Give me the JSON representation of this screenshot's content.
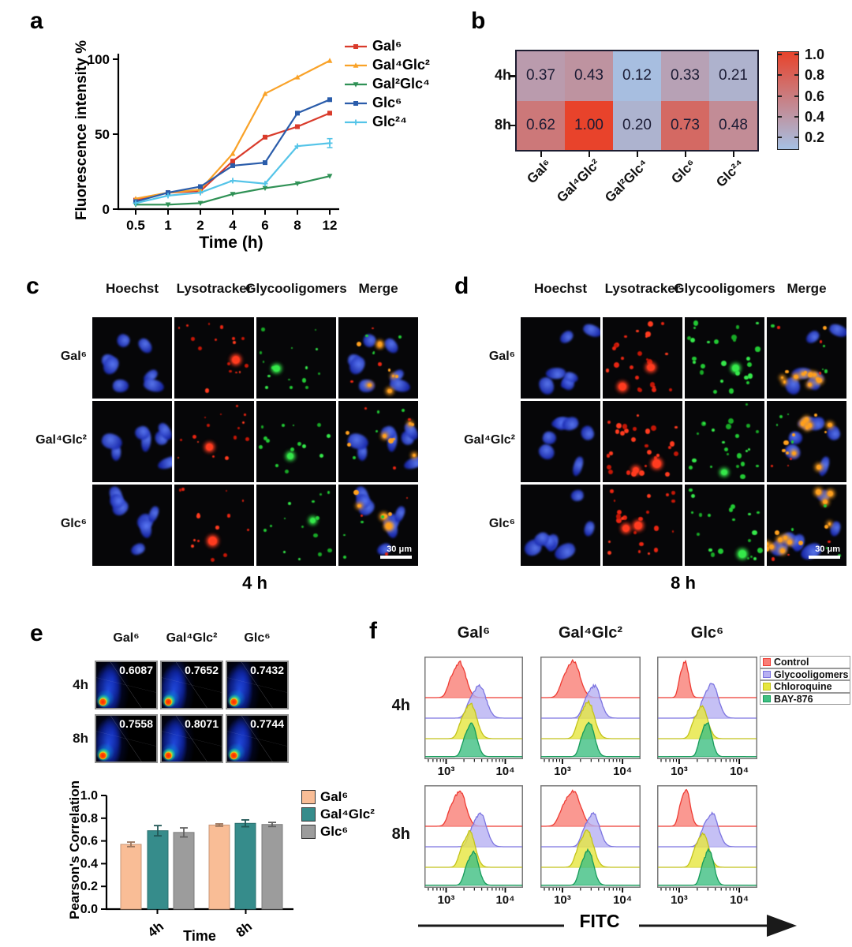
{
  "figure_labels": {
    "a": "a",
    "b": "b",
    "c": "c",
    "d": "d",
    "e": "e",
    "f": "f"
  },
  "panel_a": {
    "ylabel": "Fluorescence intensity %",
    "xlabel": "Time (h)"
  },
  "panel_c": {
    "headers": [
      "Hoechst",
      "Lysotracker",
      "Glycooligomers",
      "Merge"
    ],
    "row_labels": [
      "Gal⁶",
      "Gal⁴Glc²",
      "Glc⁶"
    ],
    "caption": "4 h",
    "scalebar": "30 μm"
  },
  "panel_d": {
    "headers": [
      "Hoechst",
      "Lysotracker",
      "Glycooligomers",
      "Merge"
    ],
    "row_labels": [
      "Gal⁶",
      "Gal⁴Glc²",
      "Glc⁶"
    ],
    "caption": "8 h",
    "scalebar": "30 μm"
  },
  "panel_e": {
    "row_labels": [
      "4h",
      "8h"
    ],
    "bar_ylabel": "Pearson's Correlation",
    "bar_xlabel": "Time"
  },
  "panel_f": {
    "row_labels": [
      "4h",
      "8h"
    ],
    "xlabel": "FITC"
  },
  "microscopy": {
    "channel_keys": [
      "hoechst",
      "lysotracker",
      "glycooligomers",
      "merge"
    ],
    "nuclei_inner": "#5d7cf7",
    "nuclei_outer": "#1a2ab0",
    "lyso_colors": [
      "#e82512",
      "#ff3b1f",
      "#c41606"
    ],
    "glyco_colors": [
      "#22c934",
      "#35e84a",
      "#18a826"
    ],
    "merge_dot_color": "#ffa01e",
    "panels": {
      "c": {
        "intensity": 1
      },
      "d": {
        "intensity": 1.7
      }
    }
  },
  "chart_data": [
    {
      "id": "a",
      "type": "line",
      "xlabel": "Time (h)",
      "ylabel": "Fluorescence intensity %",
      "x_categories": [
        "0.5",
        "1",
        "2",
        "4",
        "6",
        "8",
        "12"
      ],
      "yticks": [
        0,
        50,
        100
      ],
      "ylim": [
        0,
        110
      ],
      "legend_position": "right",
      "series": [
        {
          "name": "Gal⁶",
          "color": "#d93b2b",
          "marker": "square",
          "values": [
            6,
            11,
            12,
            32,
            48,
            55,
            64
          ]
        },
        {
          "name": "Gal⁴Glc²",
          "color": "#f9a228",
          "marker": "triangle",
          "values": [
            7,
            11,
            13,
            37,
            77,
            88,
            99
          ]
        },
        {
          "name": "Gal²Glc⁴",
          "color": "#2f9155",
          "marker": "triangle-down",
          "values": [
            3,
            3,
            4,
            10,
            14,
            17,
            22
          ]
        },
        {
          "name": "Glc⁶",
          "color": "#2a5caa",
          "marker": "square",
          "values": [
            5,
            11,
            15,
            29,
            31,
            64,
            73
          ]
        },
        {
          "name": "Glc²⁴",
          "color": "#54c4e8",
          "marker": "plus",
          "values": [
            4,
            9,
            11,
            19,
            17,
            42,
            44
          ],
          "yerr_last": 3
        }
      ]
    },
    {
      "id": "b",
      "type": "heatmap",
      "rows": [
        "4h",
        "8h"
      ],
      "columns": [
        "Gal⁶",
        "Gal⁴Glc²",
        "Gal²Glc⁴",
        "Glc⁶",
        "Glc²⁴"
      ],
      "values": [
        [
          0.37,
          0.43,
          0.12,
          0.33,
          0.21
        ],
        [
          0.62,
          1.0,
          0.2,
          0.73,
          0.48
        ]
      ],
      "value_labels": [
        [
          "0.37",
          "0.43",
          "0.12",
          "0.33",
          "0.21"
        ],
        [
          "0.62",
          "1.00",
          "0.20",
          "0.73",
          "0.48"
        ]
      ],
      "colorbar_ticks": [
        1.0,
        0.8,
        0.6,
        0.4,
        0.2
      ],
      "color_low": "#a6c1e4",
      "color_high": "#e8432b",
      "vmin": 0.1,
      "vmax": 1.0
    },
    {
      "id": "e_density",
      "type": "scatter-density",
      "columns": [
        "Gal⁶",
        "Gal⁴Glc²",
        "Glc⁶"
      ],
      "rows": [
        "4h",
        "8h"
      ],
      "values": [
        [
          "0.6087",
          "0.7652",
          "0.7432"
        ],
        [
          "0.7558",
          "0.8071",
          "0.7744"
        ]
      ]
    },
    {
      "id": "e_bar",
      "type": "bar",
      "ylabel": "Pearson's Correlation",
      "xlabel": "Time",
      "categories": [
        "4h",
        "8h"
      ],
      "yticks": [
        "0.0",
        "0.2",
        "0.4",
        "0.6",
        "0.8",
        "1.0"
      ],
      "ylim": [
        0,
        1
      ],
      "series": [
        {
          "name": "Gal⁶",
          "color": "#f9bd96",
          "values": [
            0.57,
            0.74
          ],
          "errors": [
            0.02,
            0.01
          ]
        },
        {
          "name": "Gal⁴Glc²",
          "color": "#368c8b",
          "values": [
            0.69,
            0.755
          ],
          "errors": [
            0.045,
            0.03
          ]
        },
        {
          "name": "Glc⁶",
          "color": "#9c9c9c",
          "values": [
            0.675,
            0.745
          ],
          "errors": [
            0.04,
            0.018
          ]
        }
      ]
    },
    {
      "id": "f",
      "type": "ridgeline",
      "columns": [
        "Gal⁶",
        "Gal⁴Glc²",
        "Glc⁶"
      ],
      "rows": [
        "4h",
        "8h"
      ],
      "xlabel": "FITC",
      "xtick_labels": [
        "10³",
        "10⁴"
      ],
      "legend": [
        {
          "name": "Control",
          "fill": "#f97e76",
          "stroke": "#ee3b33"
        },
        {
          "name": "Glycooligomers",
          "fill": "#b7b0f2",
          "stroke": "#7c74e0"
        },
        {
          "name": "Chloroquine",
          "fill": "#e6e63f",
          "stroke": "#c2c21a"
        },
        {
          "name": "BAY-876",
          "fill": "#3fbf82",
          "stroke": "#169b5a"
        }
      ],
      "baselines": [
        0.4,
        0.6,
        0.8,
        0.975
      ],
      "plots": [
        [
          [
            [
              0.36,
              0.06,
              0.36
            ],
            [
              0.56,
              0.065,
              0.33
            ],
            [
              0.47,
              0.06,
              0.36
            ],
            [
              0.48,
              0.05,
              0.33
            ]
          ],
          [
            [
              0.33,
              0.065,
              0.37
            ],
            [
              0.54,
              0.06,
              0.33
            ],
            [
              0.48,
              0.06,
              0.37
            ],
            [
              0.49,
              0.05,
              0.35
            ]
          ],
          [
            [
              0.28,
              0.035,
              0.37
            ],
            [
              0.55,
              0.06,
              0.35
            ],
            [
              0.45,
              0.055,
              0.33
            ],
            [
              0.5,
              0.045,
              0.35
            ]
          ]
        ],
        [
          [
            [
              0.36,
              0.06,
              0.36
            ],
            [
              0.57,
              0.06,
              0.34
            ],
            [
              0.46,
              0.055,
              0.36
            ],
            [
              0.5,
              0.05,
              0.34
            ]
          ],
          [
            [
              0.33,
              0.07,
              0.36
            ],
            [
              0.53,
              0.06,
              0.34
            ],
            [
              0.47,
              0.06,
              0.37
            ],
            [
              0.48,
              0.05,
              0.36
            ]
          ],
          [
            [
              0.29,
              0.04,
              0.37
            ],
            [
              0.55,
              0.06,
              0.34
            ],
            [
              0.46,
              0.055,
              0.34
            ],
            [
              0.52,
              0.045,
              0.36
            ]
          ]
        ]
      ]
    }
  ]
}
